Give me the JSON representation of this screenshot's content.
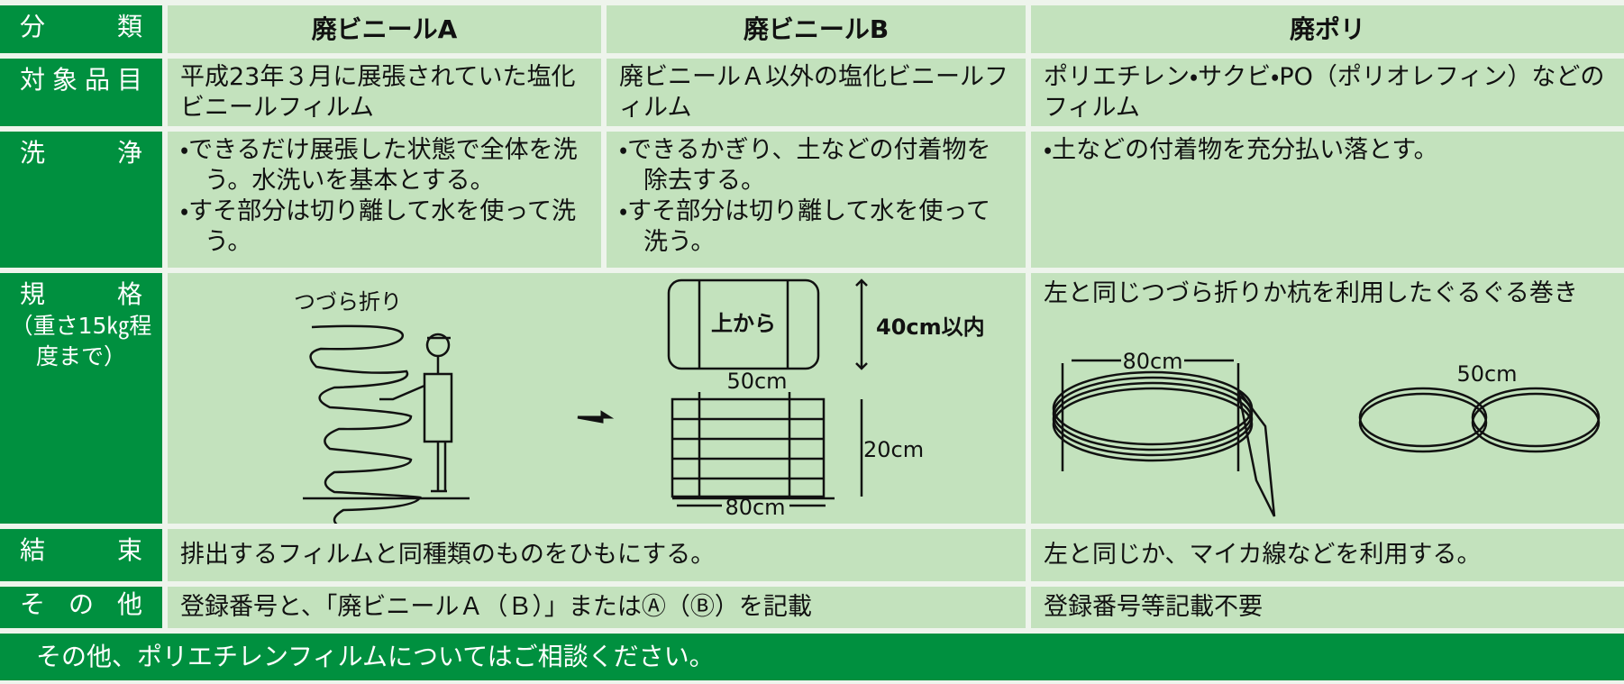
{
  "header": {
    "label": "分類",
    "columns": [
      "廃ビニールA",
      "廃ビニールB",
      "廃ポリ"
    ]
  },
  "rows": {
    "target": {
      "label": "対象品目",
      "cells": [
        "平成23年３月に展張されていた塩化ビニールフィルム",
        "廃ビニールＡ以外の塩化ビニールフィルム",
        "ポリエチレン・サクビ・PO（ポリオレフィン）などのフィルム"
      ]
    },
    "wash": {
      "label": "洗浄",
      "cells": [
        [
          "・できるだけ展張した状態で全体を洗う。水洗いを基本とする。",
          "・すそ部分は切り離して水を使って洗う。"
        ],
        [
          "・できるかぎり、土などの付着物を除去する。",
          "・すそ部分は切り離して水を使って洗う。"
        ],
        [
          "・土などの付着物を充分払い落とす。"
        ]
      ]
    },
    "spec": {
      "label": "規格",
      "note": "（重さ15㎏程度まで）",
      "fold": "つづら折り",
      "box": "上から",
      "box_height": "40cm以内",
      "tie": "50cm",
      "height": "20cm",
      "width": "80cm",
      "poly_text": "左と同じつづら折りか杭を利用したぐるぐる巻き",
      "poly_width": "80cm",
      "poly_coil": "50cm"
    },
    "binding": {
      "label": "結束",
      "cells": [
        "排出するフィルムと同種類のものをひもにする。",
        "左と同じか、マイカ線などを利用する。"
      ]
    },
    "other": {
      "label": "その他",
      "cells": [
        "登録番号と、「廃ビニールＡ（Ｂ）」またはⒶ（Ⓑ）を記載",
        "登録番号等記載不要"
      ]
    }
  },
  "footer": "その他、ポリエチレンフィルムについてはご相談ください。"
}
